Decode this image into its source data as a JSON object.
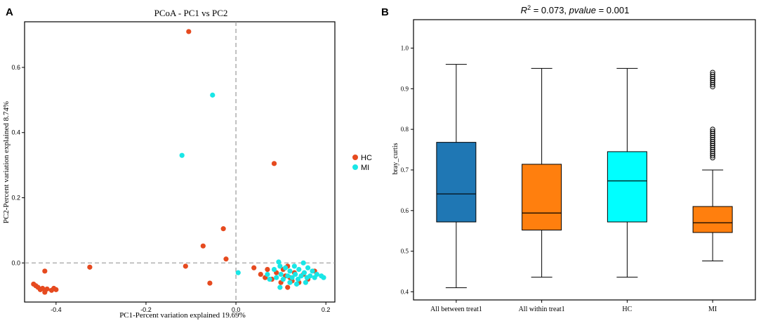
{
  "chart_data": [
    {
      "panel_label": "A",
      "type": "scatter",
      "title": "PCoA - PC1 vs PC2",
      "xlabel": "PC1-Percent variation explained 19.69%",
      "ylabel": "PC2-Percent variation explained 8.74%",
      "xlim": [
        -0.47,
        0.22
      ],
      "ylim": [
        -0.12,
        0.74
      ],
      "x_ticks": [
        -0.4,
        -0.2,
        0.0,
        0.2
      ],
      "x_tick_labels": [
        "-0.4",
        "-0.2",
        "0.0",
        "0.2"
      ],
      "y_ticks": [
        0.0,
        0.2,
        0.4,
        0.6
      ],
      "y_tick_labels": [
        "0.0",
        "0.2",
        "0.4",
        "0.6"
      ],
      "legend_position": "right-outside",
      "reference_lines": {
        "x": 0.0,
        "y": 0.0
      },
      "series": [
        {
          "name": "HC",
          "color": "#e64a1f",
          "points": [
            [
              -0.105,
              0.71
            ],
            [
              0.085,
              0.305
            ],
            [
              -0.028,
              0.105
            ],
            [
              -0.073,
              0.052
            ],
            [
              -0.022,
              0.012
            ],
            [
              -0.112,
              -0.01
            ],
            [
              -0.325,
              -0.013
            ],
            [
              -0.058,
              -0.062
            ],
            [
              -0.45,
              -0.065
            ],
            [
              -0.445,
              -0.07
            ],
            [
              -0.44,
              -0.075
            ],
            [
              -0.435,
              -0.082
            ],
            [
              -0.43,
              -0.078
            ],
            [
              -0.425,
              -0.09
            ],
            [
              -0.42,
              -0.08
            ],
            [
              -0.41,
              -0.084
            ],
            [
              -0.4,
              -0.082
            ],
            [
              -0.405,
              -0.078
            ],
            [
              -0.425,
              -0.025
            ],
            [
              0.04,
              -0.015
            ],
            [
              0.055,
              -0.035
            ],
            [
              0.065,
              -0.045
            ],
            [
              0.07,
              -0.02
            ],
            [
              0.08,
              -0.05
            ],
            [
              0.09,
              -0.03
            ],
            [
              0.1,
              -0.06
            ],
            [
              0.11,
              -0.04
            ],
            [
              0.115,
              -0.075
            ],
            [
              0.12,
              -0.045
            ],
            [
              0.125,
              -0.055
            ],
            [
              0.13,
              -0.03
            ],
            [
              0.14,
              -0.06
            ],
            [
              0.15,
              -0.035
            ],
            [
              0.16,
              -0.05
            ],
            [
              0.115,
              -0.01
            ],
            [
              0.175,
              -0.025
            ],
            [
              0.105,
              -0.02
            ]
          ]
        },
        {
          "name": "MI",
          "color": "#19e6e6",
          "points": [
            [
              -0.052,
              0.515
            ],
            [
              -0.12,
              0.33
            ],
            [
              0.005,
              -0.03
            ],
            [
              0.07,
              -0.035
            ],
            [
              0.075,
              -0.05
            ],
            [
              0.085,
              -0.02
            ],
            [
              0.09,
              -0.045
            ],
            [
              0.095,
              0.003
            ],
            [
              0.098,
              -0.075
            ],
            [
              0.1,
              -0.035
            ],
            [
              0.105,
              -0.05
            ],
            [
              0.11,
              -0.015
            ],
            [
              0.115,
              -0.04
            ],
            [
              0.12,
              -0.025
            ],
            [
              0.125,
              -0.045
            ],
            [
              0.13,
              -0.01
            ],
            [
              0.132,
              -0.035
            ],
            [
              0.138,
              -0.05
            ],
            [
              0.14,
              -0.02
            ],
            [
              0.145,
              -0.04
            ],
            [
              0.15,
              0.0
            ],
            [
              0.152,
              -0.03
            ],
            [
              0.158,
              -0.045
            ],
            [
              0.16,
              -0.015
            ],
            [
              0.165,
              -0.04
            ],
            [
              0.17,
              -0.025
            ],
            [
              0.175,
              -0.045
            ],
            [
              0.18,
              -0.035
            ],
            [
              0.19,
              -0.04
            ],
            [
              0.195,
              -0.045
            ],
            [
              0.135,
              -0.065
            ],
            [
              0.155,
              -0.06
            ],
            [
              0.12,
              -0.06
            ],
            [
              0.098,
              -0.01
            ]
          ]
        }
      ]
    },
    {
      "panel_label": "B",
      "type": "box",
      "title": "R^2 = 0.073, pvalue = 0.001",
      "title_parts": {
        "r": "R",
        "sup": "2",
        "eq": " = 0.073, ",
        "p": "pvalue",
        "eq2": " = 0.001"
      },
      "xlabel": "",
      "ylabel": "bray_curtis",
      "ylim": [
        0.38,
        1.07
      ],
      "y_ticks": [
        0.4,
        0.5,
        0.6,
        0.7,
        0.8,
        0.9,
        1.0
      ],
      "y_tick_labels": [
        "0.4",
        "0.5",
        "0.6",
        "0.7",
        "0.8",
        "0.9",
        "1.0"
      ],
      "categories": [
        "All between treat1",
        "All within treat1",
        "HC",
        "MI"
      ],
      "boxes": [
        {
          "name": "All between treat1",
          "color": "#1f77b4",
          "min": 0.41,
          "q1": 0.572,
          "median": 0.641,
          "q3": 0.768,
          "max": 0.96,
          "outliers": []
        },
        {
          "name": "All within treat1",
          "color": "#ff7f0e",
          "min": 0.436,
          "q1": 0.552,
          "median": 0.594,
          "q3": 0.714,
          "max": 0.95,
          "outliers": []
        },
        {
          "name": "HC",
          "color": "#00ffff",
          "min": 0.436,
          "q1": 0.572,
          "median": 0.673,
          "q3": 0.745,
          "max": 0.95,
          "outliers": []
        },
        {
          "name": "MI",
          "color": "#ff7f0e",
          "min": 0.476,
          "q1": 0.546,
          "median": 0.57,
          "q3": 0.61,
          "max": 0.7,
          "outliers": [
            0.73,
            0.735,
            0.74,
            0.745,
            0.75,
            0.755,
            0.76,
            0.765,
            0.77,
            0.775,
            0.78,
            0.785,
            0.79,
            0.795,
            0.8,
            0.905,
            0.91,
            0.915,
            0.92,
            0.925,
            0.93,
            0.935,
            0.94
          ]
        }
      ]
    }
  ]
}
